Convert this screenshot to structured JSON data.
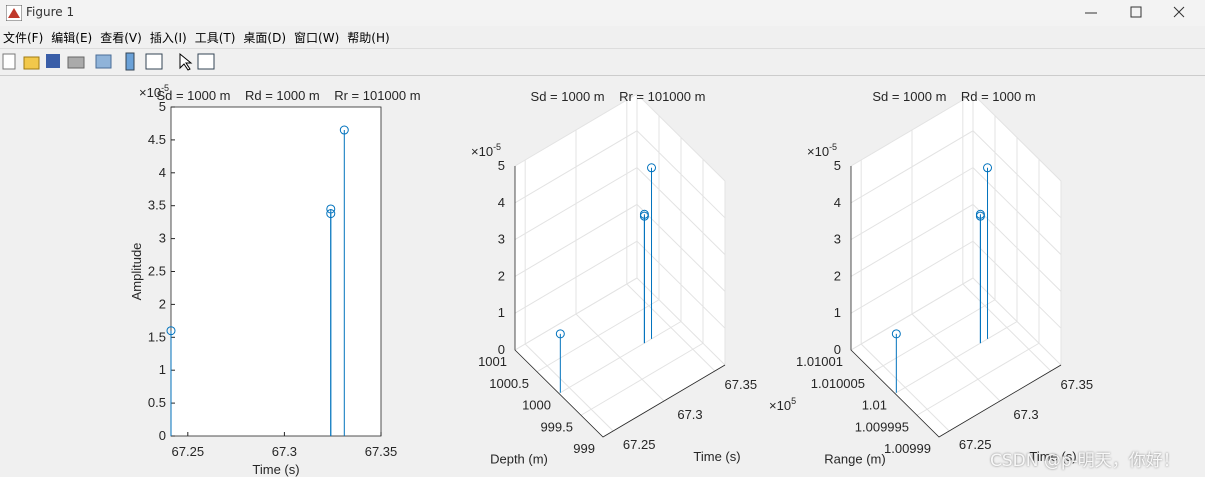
{
  "window": {
    "title": "Figure 1"
  },
  "menu": [
    "文件(F)",
    "编辑(E)",
    "查看(V)",
    "插入(I)",
    "工具(T)",
    "桌面(D)",
    "窗口(W)",
    "帮助(H)"
  ],
  "watermark": "CSDN @p-明天，你好！",
  "chart_data": [
    {
      "type": "stem",
      "title": "Sd = 1000 m    Rd = 1000 m    Rr = 101000 m",
      "x_label": "Time (s)",
      "y_label": "Amplitude",
      "y_exponent": {
        "base": "×10",
        "power": "-5"
      },
      "x": [
        67.2413,
        67.324,
        67.324,
        67.331
      ],
      "values": [
        1.6,
        3.45,
        3.38,
        4.65
      ],
      "color": "#0072bd",
      "xlim": [
        67.2413,
        67.35
      ],
      "ylim": [
        0,
        5
      ],
      "xticks": [
        67.25,
        67.3,
        67.35
      ],
      "yticks": [
        0,
        0.5,
        1,
        1.5,
        2,
        2.5,
        3,
        3.5,
        4,
        4.5,
        5
      ]
    },
    {
      "type": "stem3",
      "title": "Sd = 1000 m    Rr = 101000 m",
      "x_label": "Time (s)",
      "y_label": "Depth (m)",
      "z_exponent": {
        "base": "×10",
        "power": "-5"
      },
      "x": [
        67.2413,
        67.324,
        67.324,
        67.331
      ],
      "y": [
        1000,
        1000,
        1000,
        1000
      ],
      "values": [
        1.6,
        3.5,
        3.45,
        4.65
      ],
      "color": "#0072bd",
      "xlim": [
        67.24,
        67.36
      ],
      "ylim": [
        999,
        1001
      ],
      "zlim": [
        0,
        5
      ],
      "xticks": [
        67.25,
        67.3,
        67.35
      ],
      "yticks": [
        999,
        999.5,
        1000,
        1000.5,
        1001
      ],
      "zticks": [
        0,
        1,
        2,
        3,
        4,
        5
      ],
      "grid": true
    },
    {
      "type": "stem3",
      "title": "Sd = 1000 m    Rd = 1000 m",
      "x_label": "Time (s)",
      "y_label": "Range (m)",
      "z_exponent": {
        "base": "×10",
        "power": "-5"
      },
      "y_exponent": {
        "base": "×10",
        "power": "5"
      },
      "x": [
        67.2413,
        67.324,
        67.324,
        67.331
      ],
      "y": [
        1.01,
        1.01,
        1.01,
        1.01
      ],
      "values": [
        1.6,
        3.5,
        3.45,
        4.65
      ],
      "color": "#0072bd",
      "xlim": [
        67.24,
        67.36
      ],
      "ylim": [
        1.00999,
        1.01001
      ],
      "zlim": [
        0,
        5
      ],
      "xticks": [
        67.25,
        67.3,
        67.35
      ],
      "yticks": [
        1.00999,
        1.009995,
        1.01,
        1.010005,
        1.01001
      ],
      "zticks": [
        0,
        1,
        2,
        3,
        4,
        5
      ],
      "grid": true
    }
  ]
}
